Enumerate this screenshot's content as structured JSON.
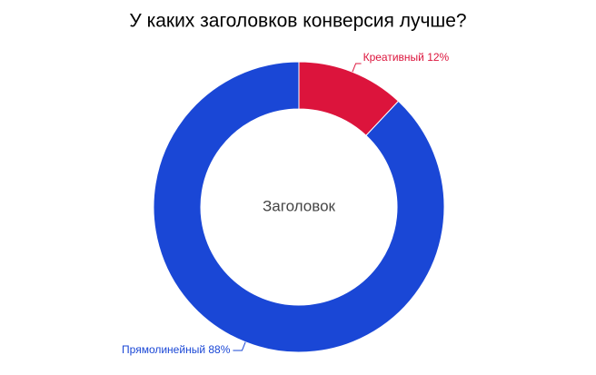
{
  "chart_data": {
    "type": "donut",
    "title": "У каких заголовков конверсия лучше?",
    "center_label": "Заголовок",
    "categories": [
      "Креативный",
      "Прямолинейный"
    ],
    "values": [
      12,
      88
    ],
    "value_labels": [
      "12%",
      "88%"
    ],
    "colors": [
      "#dc143c",
      "#1a47d6"
    ]
  }
}
